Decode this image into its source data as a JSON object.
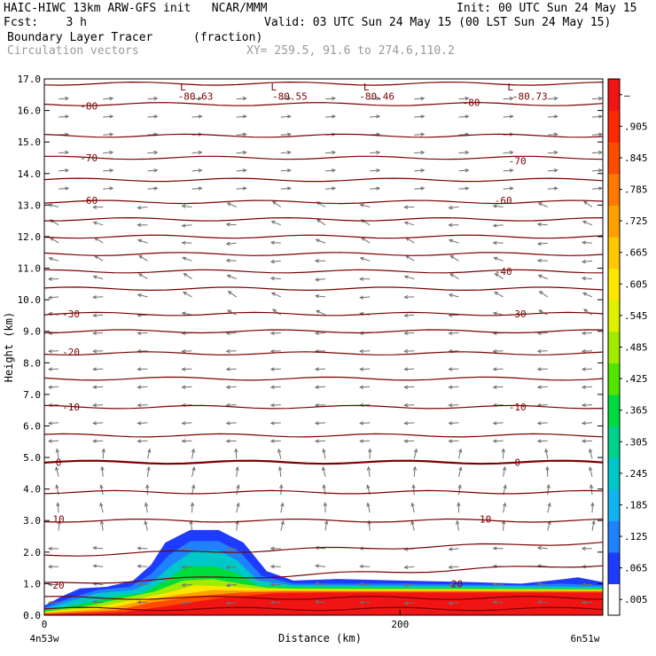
{
  "header": {
    "line1_left": "HAIC-HIWC 13km ARW-GFS init   NCAR/MMM",
    "line1_right": "Init: 00 UTC Sun 24 May 15",
    "line2_left": "Fcst:    3 h",
    "line2_right": "Valid: 03 UTC Sun 24 May 15 (00 LST Sun 24 May 15)",
    "line3_left": "Boundary Layer Tracer",
    "line3_units": "(fraction)",
    "line4_left": "Circulation vectors",
    "line4_xy": "XY= 259.5, 91.6 to 274.6,110.2"
  },
  "colors": {
    "contour": "#7a0000",
    "vector": "#707070",
    "colorbar": [
      "#ffffff",
      "#1e3cff",
      "#1e82ff",
      "#10b4f0",
      "#00c8c8",
      "#00d28c",
      "#00dc3c",
      "#50e600",
      "#a0eb00",
      "#dcf000",
      "#ffe600",
      "#ffc800",
      "#ffa000",
      "#ff7800",
      "#ff4b00",
      "#ff2800",
      "#f01414"
    ]
  },
  "chart_data": {
    "type": "cross-section",
    "xlabel": "Distance (km)",
    "ylabel": "Height (km)",
    "x_ticks": [
      {
        "value": 0,
        "label": "0"
      },
      {
        "value": 200,
        "label": "200"
      }
    ],
    "x_range": [
      0,
      314
    ],
    "x_end_labels": {
      "left": "4n53w",
      "right": "6n51w"
    },
    "y_range": [
      0,
      17
    ],
    "y_ticks": [
      "0.0",
      "1.0",
      "2.0",
      "3.0",
      "4.0",
      "5.0",
      "6.0",
      "7.0",
      "8.0",
      "9.0",
      "10.0",
      "11.0",
      "12.0",
      "13.0",
      "14.0",
      "15.0",
      "16.0",
      "17.0"
    ],
    "colorbar_labels": [
      ".005",
      ".065",
      ".125",
      ".185",
      ".245",
      ".305",
      ".365",
      ".425",
      ".485",
      ".545",
      ".605",
      ".665",
      ".725",
      ".785",
      ".845",
      ".905",
      "–"
    ],
    "temperature_contours": [
      {
        "height": 0.2,
        "slope": 0
      },
      {
        "height": 0.55,
        "slope": 0
      },
      {
        "height": 1.0,
        "slope": 0.6
      },
      {
        "height": 1.9,
        "slope": 0.4
      },
      {
        "height": 3.0,
        "slope": 0
      },
      {
        "height": 3.9,
        "slope": 0
      },
      {
        "height": 4.85,
        "slope": 0,
        "thick": true
      },
      {
        "height": 5.7,
        "slope": 0
      },
      {
        "height": 6.6,
        "slope": 0
      },
      {
        "height": 7.5,
        "slope": 0
      },
      {
        "height": 8.3,
        "slope": 0
      },
      {
        "height": 9.0,
        "slope": 0
      },
      {
        "height": 9.55,
        "slope": 0
      },
      {
        "height": 10.35,
        "slope": 0
      },
      {
        "height": 10.9,
        "slope": 0
      },
      {
        "height": 11.45,
        "slope": 0
      },
      {
        "height": 12.0,
        "slope": 0
      },
      {
        "height": 12.55,
        "slope": 0
      },
      {
        "height": 13.1,
        "slope": 0
      },
      {
        "height": 13.8,
        "slope": 0
      },
      {
        "height": 14.5,
        "slope": 0
      },
      {
        "height": 15.2,
        "slope": 0
      },
      {
        "height": 16.2,
        "slope": 0
      },
      {
        "height": 16.85,
        "slope": 0
      }
    ],
    "contour_labels": [
      {
        "text": "-80.63",
        "x": 85,
        "y": 16.45
      },
      {
        "text": "-80.55",
        "x": 138,
        "y": 16.45
      },
      {
        "text": "-80.46",
        "x": 187,
        "y": 16.45
      },
      {
        "text": "-80.73",
        "x": 273,
        "y": 16.45
      },
      {
        "text": "-80",
        "x": 25,
        "y": 16.15
      },
      {
        "text": "-80",
        "x": 240,
        "y": 16.25
      },
      {
        "text": "-70",
        "x": 25,
        "y": 14.5
      },
      {
        "text": "-70",
        "x": 266,
        "y": 14.4
      },
      {
        "text": "-60",
        "x": 25,
        "y": 13.15
      },
      {
        "text": "-60",
        "x": 258,
        "y": 13.15
      },
      {
        "text": "-40",
        "x": 258,
        "y": 10.9
      },
      {
        "text": "-30",
        "x": 15,
        "y": 9.55
      },
      {
        "text": "-30",
        "x": 266,
        "y": 9.55
      },
      {
        "text": "-20",
        "x": 15,
        "y": 8.35
      },
      {
        "text": "-10",
        "x": 15,
        "y": 6.6
      },
      {
        "text": "-10",
        "x": 266,
        "y": 6.6
      },
      {
        "text": "0",
        "x": 8,
        "y": 4.85
      },
      {
        "text": "0",
        "x": 266,
        "y": 4.85
      },
      {
        "text": "10",
        "x": 8,
        "y": 3.05
      },
      {
        "text": "10",
        "x": 248,
        "y": 3.05
      },
      {
        "text": "20",
        "x": 8,
        "y": 0.95
      },
      {
        "text": "20",
        "x": 232,
        "y": 1.0
      }
    ],
    "low_markers": [
      {
        "text": "L",
        "x": 78,
        "y": 16.75
      },
      {
        "text": "L",
        "x": 129,
        "y": 16.75
      },
      {
        "text": "L",
        "x": 181,
        "y": 16.75
      },
      {
        "text": "L",
        "x": 262,
        "y": 16.75
      }
    ],
    "tracer_layers": [
      {
        "level": 0.005,
        "profile": [
          [
            0,
            0.3
          ],
          [
            10,
            0.6
          ],
          [
            20,
            0.85
          ],
          [
            35,
            0.9
          ],
          [
            50,
            1.1
          ],
          [
            60,
            1.6
          ],
          [
            68,
            2.3
          ],
          [
            82,
            2.7
          ],
          [
            98,
            2.7
          ],
          [
            112,
            2.3
          ],
          [
            125,
            1.4
          ],
          [
            140,
            1.1
          ],
          [
            165,
            1.15
          ],
          [
            200,
            1.1
          ],
          [
            240,
            1.05
          ],
          [
            268,
            1.0
          ],
          [
            285,
            1.1
          ],
          [
            300,
            1.2
          ],
          [
            314,
            1.05
          ]
        ]
      },
      {
        "level": 0.065,
        "profile": [
          [
            0,
            0.25
          ],
          [
            15,
            0.55
          ],
          [
            30,
            0.8
          ],
          [
            48,
            0.9
          ],
          [
            60,
            1.3
          ],
          [
            70,
            1.9
          ],
          [
            82,
            2.35
          ],
          [
            98,
            2.35
          ],
          [
            110,
            2.0
          ],
          [
            122,
            1.25
          ],
          [
            140,
            1.0
          ],
          [
            200,
            1.0
          ],
          [
            270,
            0.95
          ],
          [
            290,
            1.0
          ],
          [
            314,
            0.95
          ]
        ]
      },
      {
        "level": 0.185,
        "profile": [
          [
            0,
            0.2
          ],
          [
            15,
            0.45
          ],
          [
            30,
            0.7
          ],
          [
            50,
            0.8
          ],
          [
            62,
            1.1
          ],
          [
            72,
            1.6
          ],
          [
            84,
            2.05
          ],
          [
            98,
            2.05
          ],
          [
            108,
            1.75
          ],
          [
            120,
            1.1
          ],
          [
            140,
            0.95
          ],
          [
            314,
            0.9
          ]
        ]
      },
      {
        "level": 0.305,
        "profile": [
          [
            0,
            0.15
          ],
          [
            20,
            0.35
          ],
          [
            40,
            0.6
          ],
          [
            55,
            0.7
          ],
          [
            68,
            1.1
          ],
          [
            80,
            1.55
          ],
          [
            95,
            1.55
          ],
          [
            108,
            1.35
          ],
          [
            120,
            0.95
          ],
          [
            140,
            0.9
          ],
          [
            314,
            0.85
          ]
        ]
      },
      {
        "level": 0.425,
        "profile": [
          [
            0,
            0.12
          ],
          [
            25,
            0.3
          ],
          [
            45,
            0.55
          ],
          [
            62,
            0.75
          ],
          [
            78,
            1.1
          ],
          [
            95,
            1.15
          ],
          [
            110,
            1.0
          ],
          [
            125,
            0.88
          ],
          [
            140,
            0.85
          ],
          [
            314,
            0.82
          ]
        ]
      },
      {
        "level": 0.545,
        "profile": [
          [
            0,
            0.1
          ],
          [
            30,
            0.25
          ],
          [
            50,
            0.5
          ],
          [
            68,
            0.7
          ],
          [
            85,
            0.95
          ],
          [
            105,
            0.9
          ],
          [
            125,
            0.82
          ],
          [
            314,
            0.8
          ]
        ]
      },
      {
        "level": 0.665,
        "profile": [
          [
            0,
            0.08
          ],
          [
            35,
            0.2
          ],
          [
            55,
            0.45
          ],
          [
            75,
            0.65
          ],
          [
            95,
            0.8
          ],
          [
            115,
            0.78
          ],
          [
            130,
            0.78
          ],
          [
            314,
            0.78
          ]
        ]
      },
      {
        "level": 0.785,
        "profile": [
          [
            0,
            0.05
          ],
          [
            40,
            0.15
          ],
          [
            60,
            0.4
          ],
          [
            85,
            0.6
          ],
          [
            110,
            0.72
          ],
          [
            135,
            0.75
          ],
          [
            314,
            0.75
          ]
        ]
      },
      {
        "level": 0.905,
        "profile": [
          [
            0,
            0.03
          ],
          [
            45,
            0.1
          ],
          [
            70,
            0.3
          ],
          [
            100,
            0.55
          ],
          [
            130,
            0.7
          ],
          [
            160,
            0.72
          ],
          [
            314,
            0.72
          ]
        ]
      }
    ]
  }
}
